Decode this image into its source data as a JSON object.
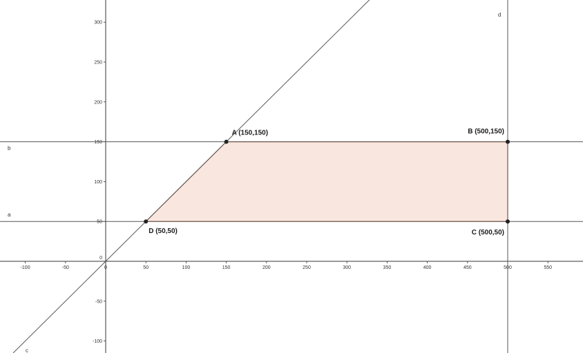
{
  "axes": {
    "x_range": [
      -130,
      595
    ],
    "y_range": [
      -115,
      315
    ],
    "x_ticks": [
      -100,
      -50,
      0,
      50,
      100,
      150,
      200,
      250,
      300,
      350,
      400,
      450,
      500,
      550
    ],
    "y_ticks": [
      -100,
      -50,
      50,
      100,
      150,
      200,
      250,
      300
    ],
    "origin_label": "0",
    "axis_color": "#333333"
  },
  "lines": {
    "a": {
      "name": "a",
      "kind": "horizontal",
      "value": 50
    },
    "b": {
      "name": "b",
      "kind": "horizontal",
      "value": 150
    },
    "c": {
      "name": "c",
      "kind": "diagonal",
      "slope": 1,
      "intercept": 0
    },
    "d": {
      "name": "d",
      "kind": "vertical",
      "value": 500
    },
    "color": "#555555"
  },
  "polygon": {
    "vertices": [
      "A",
      "B",
      "C",
      "D"
    ],
    "fill": "#f9e6df",
    "stroke": "#c0693b"
  },
  "points": {
    "A": {
      "x": 150,
      "y": 150,
      "label": "A (150,150)",
      "anchor": "above-right"
    },
    "B": {
      "x": 500,
      "y": 150,
      "label": "B (500,150)",
      "anchor": "above-left"
    },
    "C": {
      "x": 500,
      "y": 50,
      "label": "C (500,50)",
      "anchor": "below-left"
    },
    "D": {
      "x": 50,
      "y": 50,
      "label": "D (50,50)",
      "anchor": "below-right"
    },
    "color": "#222222"
  }
}
